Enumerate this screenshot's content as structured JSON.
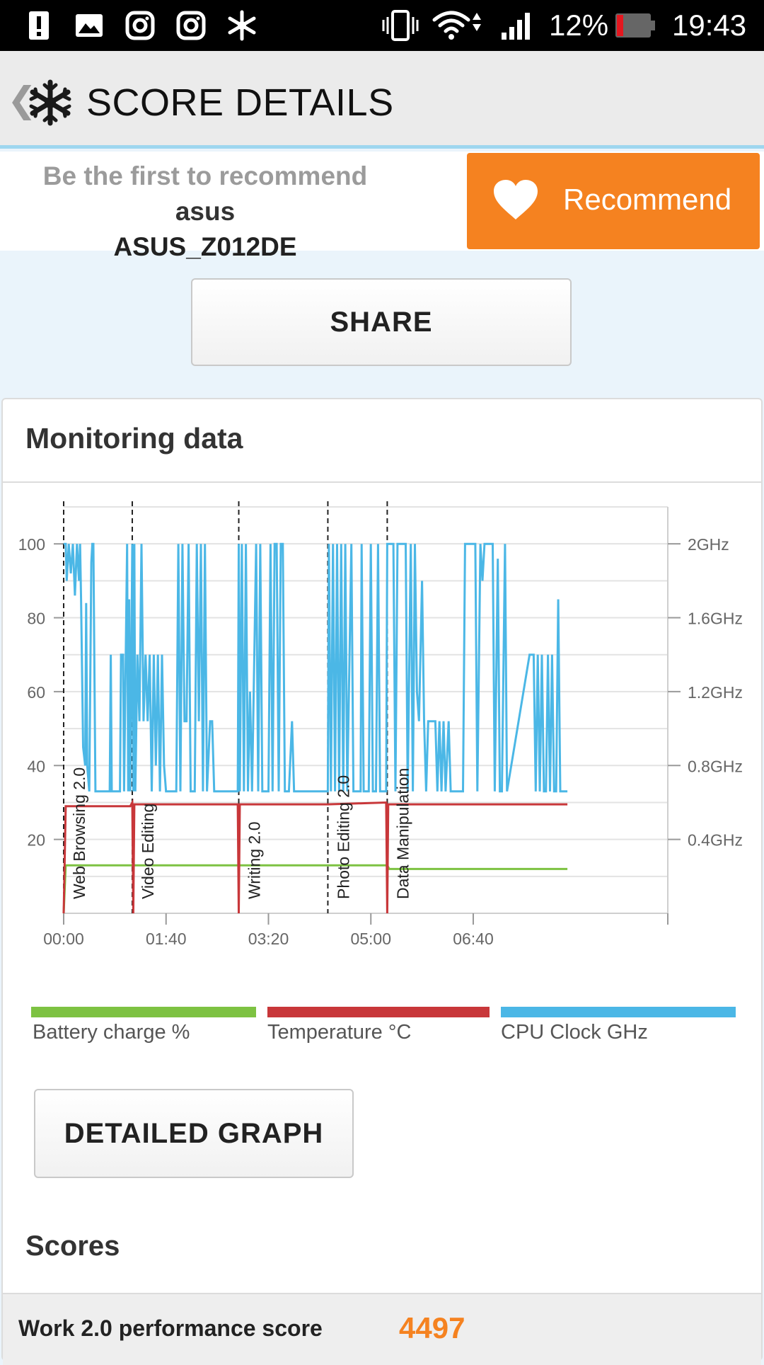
{
  "status_bar": {
    "battery_percent": "12%",
    "time": "19:43",
    "icons": [
      "alert-icon",
      "gallery-icon",
      "instagram-icon",
      "instagram-icon",
      "snowflake-icon",
      "vibrate-icon",
      "wifi-icon",
      "signal-icon",
      "battery-icon"
    ]
  },
  "app_bar": {
    "back_glyph": "❮",
    "title": "SCORE DETAILS"
  },
  "recommend": {
    "prefix": "Be the first to recommend ",
    "brand": "asus",
    "model": "ASUS_Z012DE",
    "button_label": "Recommend"
  },
  "share": {
    "label": "SHARE"
  },
  "monitoring": {
    "title": "Monitoring data",
    "detailed_graph_label": "DETAILED GRAPH"
  },
  "scores": {
    "title": "Scores",
    "rows": [
      {
        "label": "Work 2.0 performance score",
        "value": "4497"
      }
    ]
  },
  "colors": {
    "accent_orange": "#f58220",
    "battery": "#7dc242",
    "temperature": "#c8373a",
    "cpu": "#4bb7e6"
  },
  "chart_data": {
    "type": "line",
    "x_unit": "time mm:ss",
    "x_range": [
      0,
      590
    ],
    "x_ticks": [
      "00:00",
      "01:40",
      "03:20",
      "05:00",
      "06:40"
    ],
    "x_tick_values": [
      0,
      100,
      200,
      300,
      400
    ],
    "y_left_range": [
      0,
      110
    ],
    "y_left_ticks": [
      "20",
      "40",
      "60",
      "80",
      "100"
    ],
    "y_left_tick_values": [
      20,
      40,
      60,
      80,
      100
    ],
    "y_right_ticks": [
      "0.4GHz",
      "0.8GHz",
      "1.2GHz",
      "1.6GHz",
      "2GHz"
    ],
    "y_right_tick_values": [
      20,
      40,
      60,
      80,
      100
    ],
    "grid": true,
    "legend_position": "bottom",
    "sections": [
      {
        "label": "Web Browsing 2.0",
        "x": 0
      },
      {
        "label": "Video Editing",
        "x": 67
      },
      {
        "label": "Writing 2.0",
        "x": 171
      },
      {
        "label": "Photo Editing 2.0",
        "x": 258
      },
      {
        "label": "Data Manipulation",
        "x": 316
      }
    ],
    "series": [
      {
        "name": "Battery charge %",
        "color": "#7dc242",
        "points": [
          [
            0,
            0
          ],
          [
            2,
            13
          ],
          [
            316,
            13
          ],
          [
            318,
            12
          ],
          [
            492,
            12
          ]
        ]
      },
      {
        "name": "Temperature °C",
        "color": "#c8373a",
        "points": [
          [
            0,
            0
          ],
          [
            2,
            29
          ],
          [
            65,
            29
          ],
          [
            67,
            30
          ],
          [
            68,
            0
          ],
          [
            69,
            29.5
          ],
          [
            170,
            29.5
          ],
          [
            171,
            0
          ],
          [
            172,
            29.5
          ],
          [
            258,
            29.5
          ],
          [
            315,
            30
          ],
          [
            316,
            0
          ],
          [
            317,
            29.5
          ],
          [
            492,
            29.5
          ]
        ]
      },
      {
        "name": "CPU Clock GHz",
        "color": "#4bb7e6",
        "points": [
          [
            0,
            100
          ],
          [
            2,
            100
          ],
          [
            3,
            90
          ],
          [
            5,
            100
          ],
          [
            7,
            92
          ],
          [
            9,
            100
          ],
          [
            11,
            86
          ],
          [
            13,
            100
          ],
          [
            15,
            90
          ],
          [
            16,
            100
          ],
          [
            17,
            85
          ],
          [
            19,
            45
          ],
          [
            21,
            40
          ],
          [
            22,
            84
          ],
          [
            23,
            40
          ],
          [
            25,
            33
          ],
          [
            27,
            95
          ],
          [
            28,
            100
          ],
          [
            29,
            100
          ],
          [
            31,
            33
          ],
          [
            45,
            33
          ],
          [
            46,
            70
          ],
          [
            47,
            33
          ],
          [
            55,
            33
          ],
          [
            56,
            70
          ],
          [
            58,
            70
          ],
          [
            59,
            33
          ],
          [
            62,
            100
          ],
          [
            63,
            33
          ],
          [
            64,
            85
          ],
          [
            65,
            33
          ],
          [
            67,
            100
          ],
          [
            68,
            33
          ],
          [
            69,
            100
          ],
          [
            70,
            33
          ],
          [
            72,
            70
          ],
          [
            74,
            52
          ],
          [
            76,
            100
          ],
          [
            78,
            52
          ],
          [
            80,
            70
          ],
          [
            82,
            52
          ],
          [
            84,
            70
          ],
          [
            86,
            33
          ],
          [
            88,
            70
          ],
          [
            90,
            40
          ],
          [
            92,
            70
          ],
          [
            94,
            33
          ],
          [
            96,
            70
          ],
          [
            98,
            40
          ],
          [
            100,
            33
          ],
          [
            110,
            33
          ],
          [
            112,
            100
          ],
          [
            114,
            33
          ],
          [
            116,
            100
          ],
          [
            118,
            52
          ],
          [
            120,
            52
          ],
          [
            122,
            100
          ],
          [
            124,
            33
          ],
          [
            128,
            33
          ],
          [
            130,
            100
          ],
          [
            132,
            52
          ],
          [
            134,
            100
          ],
          [
            136,
            33
          ],
          [
            138,
            100
          ],
          [
            140,
            33
          ],
          [
            143,
            52
          ],
          [
            145,
            52
          ],
          [
            147,
            33
          ],
          [
            155,
            33
          ],
          [
            170,
            33
          ],
          [
            171,
            100
          ],
          [
            172,
            33
          ],
          [
            174,
            100
          ],
          [
            176,
            33
          ],
          [
            178,
            100
          ],
          [
            180,
            33
          ],
          [
            182,
            60
          ],
          [
            184,
            33
          ],
          [
            188,
            100
          ],
          [
            190,
            33
          ],
          [
            192,
            100
          ],
          [
            194,
            33
          ],
          [
            200,
            33
          ],
          [
            202,
            100
          ],
          [
            204,
            33
          ],
          [
            206,
            100
          ],
          [
            208,
            100
          ],
          [
            210,
            33
          ],
          [
            212,
            100
          ],
          [
            214,
            100
          ],
          [
            216,
            33
          ],
          [
            220,
            33
          ],
          [
            223,
            52
          ],
          [
            225,
            33
          ],
          [
            258,
            33
          ],
          [
            259,
            100
          ],
          [
            261,
            33
          ],
          [
            263,
            100
          ],
          [
            265,
            33
          ],
          [
            267,
            100
          ],
          [
            269,
            33
          ],
          [
            271,
            100
          ],
          [
            273,
            33
          ],
          [
            275,
            100
          ],
          [
            277,
            33
          ],
          [
            281,
            100
          ],
          [
            283,
            33
          ],
          [
            290,
            33
          ],
          [
            291,
            100
          ],
          [
            293,
            33
          ],
          [
            298,
            33
          ],
          [
            300,
            100
          ],
          [
            302,
            33
          ],
          [
            305,
            33
          ],
          [
            307,
            100
          ],
          [
            309,
            33
          ],
          [
            315,
            33
          ],
          [
            316,
            100
          ],
          [
            322,
            100
          ],
          [
            324,
            33
          ],
          [
            326,
            100
          ],
          [
            334,
            100
          ],
          [
            336,
            33
          ],
          [
            339,
            100
          ],
          [
            341,
            33
          ],
          [
            343,
            100
          ],
          [
            345,
            60
          ],
          [
            347,
            52
          ],
          [
            350,
            90
          ],
          [
            352,
            52
          ],
          [
            354,
            33
          ],
          [
            356,
            52
          ],
          [
            360,
            52
          ],
          [
            363,
            52
          ],
          [
            365,
            33
          ],
          [
            367,
            52
          ],
          [
            369,
            33
          ],
          [
            371,
            52
          ],
          [
            373,
            33
          ],
          [
            376,
            52
          ],
          [
            378,
            33
          ],
          [
            390,
            33
          ],
          [
            392,
            100
          ],
          [
            402,
            100
          ],
          [
            404,
            33
          ],
          [
            407,
            100
          ],
          [
            409,
            90
          ],
          [
            411,
            100
          ],
          [
            419,
            100
          ],
          [
            421,
            33
          ],
          [
            424,
            96
          ],
          [
            426,
            33
          ],
          [
            428,
            33
          ],
          [
            431,
            100
          ],
          [
            433,
            33
          ],
          [
            455,
            70
          ],
          [
            459,
            70
          ],
          [
            461,
            33
          ],
          [
            463,
            70
          ],
          [
            465,
            33
          ],
          [
            467,
            70
          ],
          [
            469,
            33
          ],
          [
            471,
            33
          ],
          [
            473,
            70
          ],
          [
            475,
            33
          ],
          [
            477,
            70
          ],
          [
            479,
            33
          ],
          [
            481,
            33
          ],
          [
            483,
            85
          ],
          [
            485,
            33
          ],
          [
            492,
            33
          ]
        ]
      }
    ]
  }
}
